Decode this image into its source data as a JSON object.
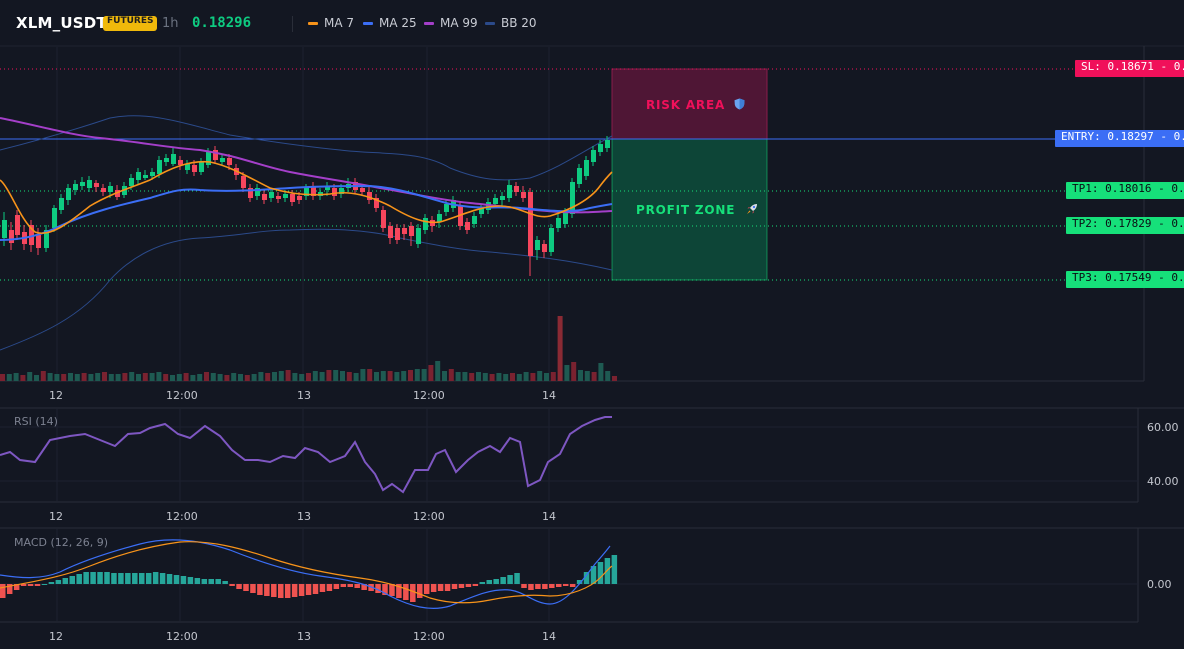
{
  "header": {
    "symbol": "XLM_USDT",
    "badge": "FUTURES",
    "timeframe": "1h",
    "last_price": "0.18296",
    "indicators": [
      {
        "label": "MA 7",
        "color": "#f7931a"
      },
      {
        "label": "MA 25",
        "color": "#3b6ef5"
      },
      {
        "label": "MA 99",
        "color": "#a43fc9"
      },
      {
        "label": "BB 20",
        "color": "#2b4a8a"
      }
    ]
  },
  "levels": {
    "sl": {
      "label": "SL: 0.18671",
      "axis": "0.19",
      "color": "#f0105a"
    },
    "entry": {
      "label": "ENTRY: 0.18297",
      "axis": "0.18",
      "color": "#3b6ef5"
    },
    "tp1": {
      "label": "TP1: 0.18016",
      "axis": "0.18",
      "color": "#16e07a"
    },
    "tp2": {
      "label": "TP2: 0.17829",
      "axis": "0.18",
      "color": "#16e07a"
    },
    "tp3": {
      "label": "TP3: 0.17549",
      "axis": "0.18",
      "color": "#16e07a"
    }
  },
  "zones": {
    "risk": {
      "label": "RISK AREA",
      "icon": "shield-icon"
    },
    "profit": {
      "label": "PROFIT ZONE",
      "icon": "rocket-icon"
    }
  },
  "time_axis": [
    "12",
    "12:00",
    "13",
    "12:00",
    "14"
  ],
  "rsi": {
    "label": "RSI (14)",
    "ticks": [
      "60.00",
      "40.00"
    ]
  },
  "macd": {
    "label": "MACD (12, 26, 9)",
    "ticks": [
      "0.00"
    ]
  },
  "colors": {
    "up": "#0ecb81",
    "down": "#f6465d",
    "background": "#131722"
  }
}
